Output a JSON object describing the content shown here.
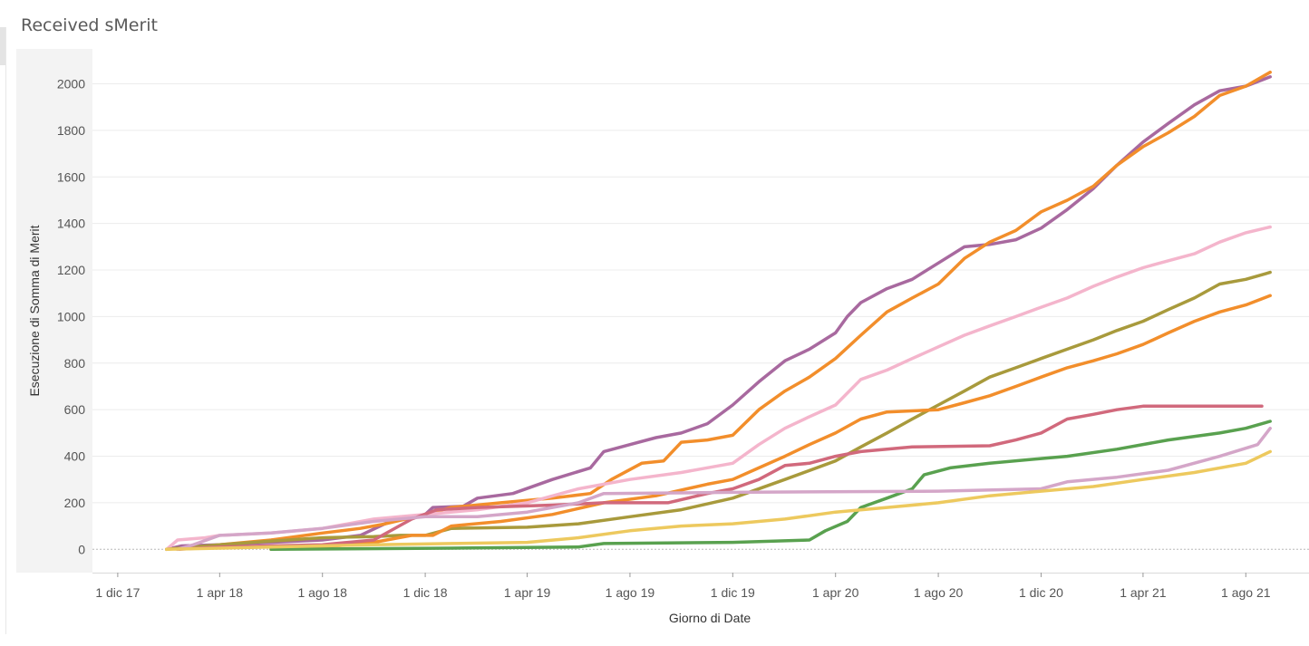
{
  "title": "Received sMerit",
  "chart_data": {
    "type": "line",
    "title": "Received sMerit",
    "xlabel": "Giorno di Date",
    "ylabel": "Esecuzione di Somma di Merit",
    "ylim": [
      -100,
      2150
    ],
    "y_ticks": [
      0,
      200,
      400,
      600,
      800,
      1000,
      1200,
      1400,
      1600,
      1800,
      2000
    ],
    "x_ticks": [
      {
        "date": "2017-12-01",
        "label": "1 dic 17"
      },
      {
        "date": "2018-04-01",
        "label": "1 apr 18"
      },
      {
        "date": "2018-08-01",
        "label": "1 ago 18"
      },
      {
        "date": "2018-12-01",
        "label": "1 dic 18"
      },
      {
        "date": "2019-04-01",
        "label": "1 apr 19"
      },
      {
        "date": "2019-08-01",
        "label": "1 ago 19"
      },
      {
        "date": "2019-12-01",
        "label": "1 dic 19"
      },
      {
        "date": "2020-04-01",
        "label": "1 apr 20"
      },
      {
        "date": "2020-08-01",
        "label": "1 ago 20"
      },
      {
        "date": "2020-12-01",
        "label": "1 dic 20"
      },
      {
        "date": "2021-04-01",
        "label": "1 apr 21"
      },
      {
        "date": "2021-08-01",
        "label": "1 ago 21"
      }
    ],
    "xlim": [
      "2017-11-01",
      "2021-10-15"
    ],
    "grid": true,
    "series": [
      {
        "color": "#a8699f",
        "points": [
          [
            "2018-01-28",
            0
          ],
          [
            "2018-02-15",
            15
          ],
          [
            "2018-04-01",
            20
          ],
          [
            "2018-06-01",
            30
          ],
          [
            "2018-08-01",
            40
          ],
          [
            "2018-09-15",
            60
          ],
          [
            "2018-10-20",
            120
          ],
          [
            "2018-12-01",
            150
          ],
          [
            "2018-12-10",
            180
          ],
          [
            "2019-01-15",
            185
          ],
          [
            "2019-02-01",
            220
          ],
          [
            "2019-03-15",
            240
          ],
          [
            "2019-05-01",
            300
          ],
          [
            "2019-06-15",
            350
          ],
          [
            "2019-07-01",
            420
          ],
          [
            "2019-08-01",
            450
          ],
          [
            "2019-09-01",
            480
          ],
          [
            "2019-10-01",
            500
          ],
          [
            "2019-11-01",
            540
          ],
          [
            "2019-12-01",
            620
          ],
          [
            "2020-01-01",
            720
          ],
          [
            "2020-02-01",
            810
          ],
          [
            "2020-03-01",
            860
          ],
          [
            "2020-04-01",
            930
          ],
          [
            "2020-04-15",
            1000
          ],
          [
            "2020-05-01",
            1060
          ],
          [
            "2020-06-01",
            1120
          ],
          [
            "2020-07-01",
            1160
          ],
          [
            "2020-08-01",
            1230
          ],
          [
            "2020-09-01",
            1300
          ],
          [
            "2020-10-01",
            1310
          ],
          [
            "2020-11-01",
            1330
          ],
          [
            "2020-12-01",
            1380
          ],
          [
            "2021-01-01",
            1460
          ],
          [
            "2021-02-01",
            1550
          ],
          [
            "2021-03-01",
            1650
          ],
          [
            "2021-04-01",
            1750
          ],
          [
            "2021-05-01",
            1830
          ],
          [
            "2021-06-01",
            1910
          ],
          [
            "2021-07-01",
            1970
          ],
          [
            "2021-08-01",
            1990
          ],
          [
            "2021-08-30",
            2030
          ]
        ]
      },
      {
        "color": "#f28e2b",
        "points": [
          [
            "2018-02-10",
            0
          ],
          [
            "2018-04-01",
            20
          ],
          [
            "2018-06-01",
            40
          ],
          [
            "2018-08-01",
            70
          ],
          [
            "2018-09-15",
            90
          ],
          [
            "2018-10-15",
            110
          ],
          [
            "2018-12-01",
            150
          ],
          [
            "2019-01-01",
            180
          ],
          [
            "2019-03-01",
            200
          ],
          [
            "2019-05-01",
            220
          ],
          [
            "2019-06-15",
            240
          ],
          [
            "2019-07-10",
            300
          ],
          [
            "2019-08-15",
            370
          ],
          [
            "2019-09-10",
            380
          ],
          [
            "2019-10-01",
            460
          ],
          [
            "2019-11-01",
            470
          ],
          [
            "2019-12-01",
            490
          ],
          [
            "2020-01-01",
            600
          ],
          [
            "2020-02-01",
            680
          ],
          [
            "2020-03-01",
            740
          ],
          [
            "2020-04-01",
            820
          ],
          [
            "2020-05-01",
            920
          ],
          [
            "2020-06-01",
            1020
          ],
          [
            "2020-07-01",
            1080
          ],
          [
            "2020-08-01",
            1140
          ],
          [
            "2020-09-01",
            1250
          ],
          [
            "2020-10-01",
            1320
          ],
          [
            "2020-11-01",
            1370
          ],
          [
            "2020-12-01",
            1450
          ],
          [
            "2021-01-01",
            1500
          ],
          [
            "2021-02-01",
            1560
          ],
          [
            "2021-03-01",
            1650
          ],
          [
            "2021-04-01",
            1730
          ],
          [
            "2021-05-01",
            1790
          ],
          [
            "2021-06-01",
            1860
          ],
          [
            "2021-07-01",
            1950
          ],
          [
            "2021-08-01",
            1990
          ],
          [
            "2021-08-30",
            2050
          ]
        ]
      },
      {
        "color": "#f4b5cc",
        "points": [
          [
            "2018-01-28",
            0
          ],
          [
            "2018-02-10",
            40
          ],
          [
            "2018-03-15",
            50
          ],
          [
            "2018-04-01",
            60
          ],
          [
            "2018-06-01",
            70
          ],
          [
            "2018-08-01",
            90
          ],
          [
            "2018-10-01",
            130
          ],
          [
            "2018-12-01",
            150
          ],
          [
            "2019-02-01",
            170
          ],
          [
            "2019-04-01",
            200
          ],
          [
            "2019-06-01",
            260
          ],
          [
            "2019-08-01",
            300
          ],
          [
            "2019-10-01",
            330
          ],
          [
            "2019-12-01",
            370
          ],
          [
            "2020-01-01",
            450
          ],
          [
            "2020-02-01",
            520
          ],
          [
            "2020-03-01",
            570
          ],
          [
            "2020-04-01",
            620
          ],
          [
            "2020-05-01",
            730
          ],
          [
            "2020-06-01",
            770
          ],
          [
            "2020-07-01",
            820
          ],
          [
            "2020-08-01",
            870
          ],
          [
            "2020-09-01",
            920
          ],
          [
            "2020-10-01",
            960
          ],
          [
            "2020-11-01",
            1000
          ],
          [
            "2020-12-01",
            1040
          ],
          [
            "2021-01-01",
            1080
          ],
          [
            "2021-02-01",
            1130
          ],
          [
            "2021-03-01",
            1170
          ],
          [
            "2021-04-01",
            1210
          ],
          [
            "2021-05-01",
            1240
          ],
          [
            "2021-06-01",
            1270
          ],
          [
            "2021-07-01",
            1320
          ],
          [
            "2021-08-01",
            1360
          ],
          [
            "2021-08-30",
            1385
          ]
        ]
      },
      {
        "color": "#a89a3c",
        "points": [
          [
            "2018-01-28",
            0
          ],
          [
            "2018-04-01",
            20
          ],
          [
            "2018-06-01",
            35
          ],
          [
            "2018-08-01",
            50
          ],
          [
            "2018-10-01",
            55
          ],
          [
            "2018-11-01",
            60
          ],
          [
            "2018-12-01",
            60
          ],
          [
            "2019-01-01",
            90
          ],
          [
            "2019-04-01",
            95
          ],
          [
            "2019-06-01",
            110
          ],
          [
            "2019-08-01",
            140
          ],
          [
            "2019-10-01",
            170
          ],
          [
            "2019-12-01",
            220
          ],
          [
            "2020-02-01",
            300
          ],
          [
            "2020-04-01",
            380
          ],
          [
            "2020-05-01",
            440
          ],
          [
            "2020-06-01",
            500
          ],
          [
            "2020-07-01",
            560
          ],
          [
            "2020-08-01",
            620
          ],
          [
            "2020-09-01",
            680
          ],
          [
            "2020-10-01",
            740
          ],
          [
            "2020-11-01",
            780
          ],
          [
            "2020-12-01",
            820
          ],
          [
            "2021-01-01",
            860
          ],
          [
            "2021-02-01",
            900
          ],
          [
            "2021-03-01",
            940
          ],
          [
            "2021-04-01",
            980
          ],
          [
            "2021-05-01",
            1030
          ],
          [
            "2021-06-01",
            1080
          ],
          [
            "2021-07-01",
            1140
          ],
          [
            "2021-08-01",
            1160
          ],
          [
            "2021-08-30",
            1190
          ]
        ]
      },
      {
        "color": "#f28e2b",
        "points": [
          [
            "2018-06-01",
            0
          ],
          [
            "2018-08-01",
            10
          ],
          [
            "2018-10-01",
            30
          ],
          [
            "2018-11-15",
            60
          ],
          [
            "2018-12-10",
            60
          ],
          [
            "2019-01-01",
            100
          ],
          [
            "2019-03-01",
            120
          ],
          [
            "2019-05-01",
            150
          ],
          [
            "2019-07-01",
            200
          ],
          [
            "2019-09-01",
            230
          ],
          [
            "2019-11-01",
            280
          ],
          [
            "2019-12-01",
            300
          ],
          [
            "2020-01-01",
            350
          ],
          [
            "2020-02-01",
            400
          ],
          [
            "2020-03-01",
            450
          ],
          [
            "2020-04-01",
            500
          ],
          [
            "2020-05-01",
            560
          ],
          [
            "2020-06-01",
            590
          ],
          [
            "2020-08-01",
            600
          ],
          [
            "2020-09-01",
            630
          ],
          [
            "2020-10-01",
            660
          ],
          [
            "2020-11-01",
            700
          ],
          [
            "2020-12-01",
            740
          ],
          [
            "2021-01-01",
            780
          ],
          [
            "2021-02-01",
            810
          ],
          [
            "2021-03-01",
            840
          ],
          [
            "2021-04-01",
            880
          ],
          [
            "2021-05-01",
            930
          ],
          [
            "2021-06-01",
            980
          ],
          [
            "2021-07-01",
            1020
          ],
          [
            "2021-08-01",
            1050
          ],
          [
            "2021-08-30",
            1090
          ]
        ]
      },
      {
        "color": "#d1697c",
        "points": [
          [
            "2018-02-10",
            0
          ],
          [
            "2018-04-01",
            10
          ],
          [
            "2018-08-01",
            20
          ],
          [
            "2018-10-01",
            40
          ],
          [
            "2018-11-15",
            130
          ],
          [
            "2018-12-15",
            170
          ],
          [
            "2019-02-01",
            180
          ],
          [
            "2019-05-01",
            190
          ],
          [
            "2019-07-01",
            200
          ],
          [
            "2019-09-15",
            200
          ],
          [
            "2019-11-01",
            240
          ],
          [
            "2019-12-01",
            260
          ],
          [
            "2020-01-01",
            300
          ],
          [
            "2020-02-01",
            360
          ],
          [
            "2020-03-01",
            370
          ],
          [
            "2020-04-01",
            400
          ],
          [
            "2020-05-01",
            420
          ],
          [
            "2020-07-01",
            440
          ],
          [
            "2020-10-01",
            445
          ],
          [
            "2020-11-01",
            470
          ],
          [
            "2020-12-01",
            500
          ],
          [
            "2021-01-01",
            560
          ],
          [
            "2021-02-01",
            580
          ],
          [
            "2021-03-01",
            600
          ],
          [
            "2021-04-01",
            615
          ],
          [
            "2021-08-20",
            615
          ]
        ]
      },
      {
        "color": "#59a14f",
        "points": [
          [
            "2018-06-01",
            0
          ],
          [
            "2019-01-01",
            5
          ],
          [
            "2019-06-01",
            10
          ],
          [
            "2019-07-01",
            25
          ],
          [
            "2019-12-01",
            30
          ],
          [
            "2020-03-01",
            40
          ],
          [
            "2020-03-20",
            80
          ],
          [
            "2020-04-15",
            120
          ],
          [
            "2020-05-01",
            180
          ],
          [
            "2020-06-01",
            220
          ],
          [
            "2020-07-01",
            260
          ],
          [
            "2020-07-15",
            320
          ],
          [
            "2020-08-15",
            350
          ],
          [
            "2020-10-01",
            370
          ],
          [
            "2020-12-01",
            390
          ],
          [
            "2021-01-01",
            400
          ],
          [
            "2021-03-01",
            430
          ],
          [
            "2021-05-01",
            470
          ],
          [
            "2021-07-01",
            500
          ],
          [
            "2021-08-01",
            520
          ],
          [
            "2021-08-30",
            550
          ]
        ]
      },
      {
        "color": "#d4a6c8",
        "points": [
          [
            "2018-02-10",
            0
          ],
          [
            "2018-03-01",
            20
          ],
          [
            "2018-04-01",
            60
          ],
          [
            "2018-06-01",
            70
          ],
          [
            "2018-08-01",
            90
          ],
          [
            "2018-10-01",
            120
          ],
          [
            "2018-12-01",
            140
          ],
          [
            "2019-02-01",
            140
          ],
          [
            "2019-04-01",
            160
          ],
          [
            "2019-06-01",
            200
          ],
          [
            "2019-07-01",
            240
          ],
          [
            "2019-12-01",
            245
          ],
          [
            "2020-08-01",
            250
          ],
          [
            "2020-12-01",
            260
          ],
          [
            "2021-01-01",
            290
          ],
          [
            "2021-03-01",
            310
          ],
          [
            "2021-05-01",
            340
          ],
          [
            "2021-07-01",
            400
          ],
          [
            "2021-08-15",
            450
          ],
          [
            "2021-08-30",
            520
          ]
        ]
      },
      {
        "color": "#edc95e",
        "points": [
          [
            "2018-01-28",
            0
          ],
          [
            "2018-06-01",
            10
          ],
          [
            "2018-10-01",
            20
          ],
          [
            "2019-01-01",
            25
          ],
          [
            "2019-04-01",
            30
          ],
          [
            "2019-06-01",
            50
          ],
          [
            "2019-08-01",
            80
          ],
          [
            "2019-10-01",
            100
          ],
          [
            "2019-12-01",
            110
          ],
          [
            "2020-02-01",
            130
          ],
          [
            "2020-04-01",
            160
          ],
          [
            "2020-06-01",
            180
          ],
          [
            "2020-08-01",
            200
          ],
          [
            "2020-10-01",
            230
          ],
          [
            "2020-12-01",
            250
          ],
          [
            "2021-02-01",
            270
          ],
          [
            "2021-04-01",
            300
          ],
          [
            "2021-06-01",
            330
          ],
          [
            "2021-08-01",
            370
          ],
          [
            "2021-08-30",
            420
          ]
        ]
      }
    ]
  }
}
